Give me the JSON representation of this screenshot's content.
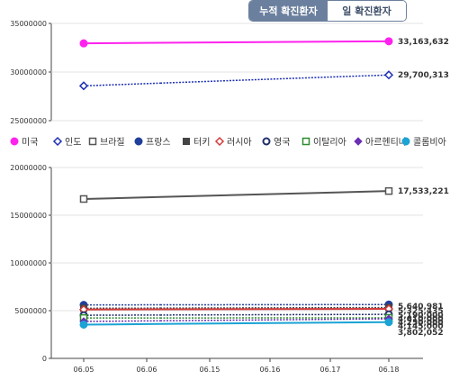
{
  "tabs": [
    {
      "label": "누적 확진환자",
      "active": true
    },
    {
      "label": "일 확진환자",
      "active": false
    }
  ],
  "chart_data": {
    "type": "line",
    "x": [
      "06.05",
      "06.06",
      "06.15",
      "06.16",
      "06.17",
      "06.18"
    ],
    "upper_panel": {
      "ylim": [
        25000000,
        35000000
      ],
      "yticks": [
        "35000000",
        "30000000",
        "25000000"
      ],
      "series": [
        {
          "name": "미국",
          "color": "#ff22ee",
          "marker": "circle-filled",
          "style": "solid",
          "values": [
            32950000,
            33163632
          ],
          "end_label": "33,163,632"
        },
        {
          "name": "인도",
          "color": "#1c2fb5",
          "marker": "diamond-open",
          "style": "dotted",
          "values": [
            28580000,
            29700313
          ],
          "end_label": "29,700,313"
        }
      ]
    },
    "lower_panel": {
      "ylim": [
        0,
        20000000
      ],
      "yticks": [
        "20000000",
        "15000000",
        "10000000",
        "5000000",
        "0"
      ],
      "series": [
        {
          "name": "브라질",
          "color": "#555555",
          "marker": "square-open",
          "style": "solid",
          "values": [
            16700000,
            17533221
          ],
          "end_label": "17,533,221"
        },
        {
          "name": "프랑스",
          "color": "#1f3f99",
          "marker": "circle-filled",
          "style": "dotted",
          "values": [
            5600000,
            5640981
          ],
          "end_label": "5,640,981"
        },
        {
          "name": "터키",
          "color": "#444444",
          "marker": "square-filled",
          "style": "dotted",
          "values": [
            5250000,
            5325435
          ],
          "end_label": "5,325,435"
        },
        {
          "name": "러시아",
          "color": "#d43a3a",
          "marker": "diamond-open",
          "style": "solid",
          "values": [
            5120000,
            5190000
          ],
          "end_label": "5,190,000"
        },
        {
          "name": "영국",
          "color": "#1f2f6a",
          "marker": "circle-open",
          "style": "dotted",
          "values": [
            4520000,
            4610000
          ],
          "end_label": "4,610,000"
        },
        {
          "name": "이탈리아",
          "color": "#2e8b2e",
          "marker": "square-open",
          "style": "dotted",
          "values": [
            4230000,
            4250000
          ],
          "end_label": "4,250,000"
        },
        {
          "name": "아르헨티나",
          "color": "#6a2fb5",
          "marker": "diamond-filled",
          "style": "dotted",
          "values": [
            3870000,
            4145000
          ],
          "end_label": "4,145,000"
        },
        {
          "name": "콜롬비아",
          "color": "#1aa3d4",
          "marker": "circle-filled",
          "style": "solid",
          "values": [
            3540000,
            3802052
          ],
          "end_label": "3,802,052"
        }
      ]
    },
    "legend_placement": "middle"
  }
}
